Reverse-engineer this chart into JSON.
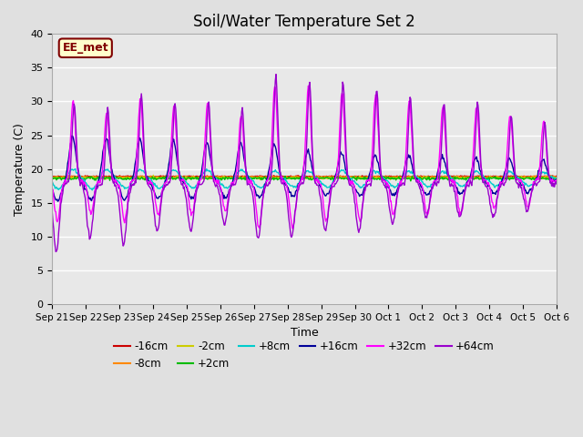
{
  "title": "Soil/Water Temperature Set 2",
  "xlabel": "Time",
  "ylabel": "Temperature (C)",
  "ylim": [
    0,
    40
  ],
  "yticks": [
    0,
    5,
    10,
    15,
    20,
    25,
    30,
    35,
    40
  ],
  "annotation_text": "EE_met",
  "annotation_bg": "#ffffcc",
  "annotation_border": "#800000",
  "annotation_text_color": "#800000",
  "series_colors": {
    "-16cm": "#cc0000",
    "-8cm": "#ff8800",
    "-2cm": "#cccc00",
    "+2cm": "#00bb00",
    "+8cm": "#00cccc",
    "+16cm": "#000099",
    "+32cm": "#ff00ff",
    "+64cm": "#9900cc"
  },
  "legend_order": [
    "-16cm",
    "-8cm",
    "-2cm",
    "+2cm",
    "+8cm",
    "+16cm",
    "+32cm",
    "+64cm"
  ],
  "fig_bg": "#e0e0e0",
  "plot_bg": "#e8e8e8",
  "grid_color": "#ffffff"
}
